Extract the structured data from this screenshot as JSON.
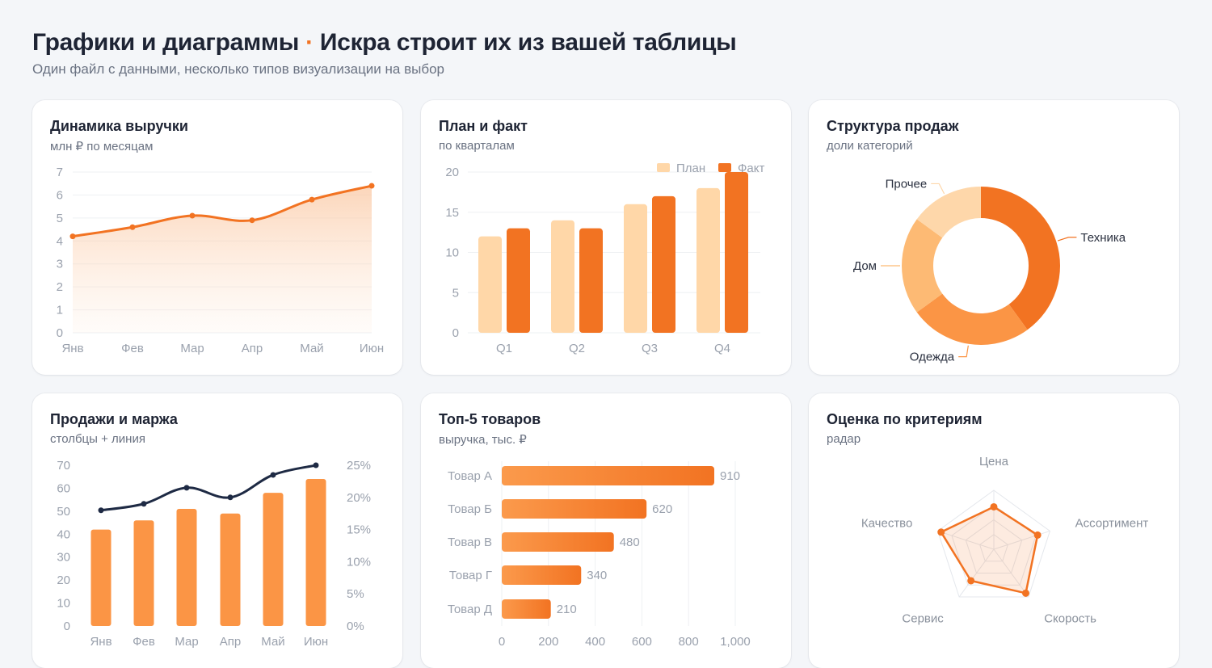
{
  "page": {
    "title_part1": "Графики и диаграммы",
    "separator": "·",
    "title_part2": "Искра строит их из вашей таблицы",
    "subtitle": "Один файл с данными, несколько типов визуализации на выбор"
  },
  "colors": {
    "accent": "#f27322",
    "accent_light": "#ffd7a8",
    "mid": "#fb9545",
    "dark_line": "#1e2a44"
  },
  "cards": {
    "revenue": {
      "title": "Динамика выручки",
      "subtitle": "млн ₽ по месяцам"
    },
    "planfact": {
      "title": "План и факт",
      "subtitle": "по кварталам"
    },
    "structure": {
      "title": "Структура продаж",
      "subtitle": "доли категорий"
    },
    "salesmargin": {
      "title": "Продажи и маржа",
      "subtitle": "столбцы + линия"
    },
    "top5": {
      "title": "Топ-5 товаров",
      "subtitle": "выручка, тыс. ₽"
    },
    "radar": {
      "title": "Оценка по критериям",
      "subtitle": "радар"
    }
  },
  "chart_data": [
    {
      "type": "area",
      "title": "Динамика выручки",
      "subtitle": "млн ₽ по месяцам",
      "categories": [
        "Янв",
        "Фев",
        "Мар",
        "Апр",
        "Май",
        "Июн"
      ],
      "values": [
        4.2,
        4.6,
        5.1,
        4.9,
        5.8,
        6.4
      ],
      "ylim": [
        0,
        7
      ],
      "yticks": [
        "0",
        "1",
        "2",
        "3",
        "4",
        "5",
        "6",
        "7"
      ]
    },
    {
      "type": "bar",
      "title": "План и факт",
      "subtitle": "по кварталам",
      "categories": [
        "Q1",
        "Q2",
        "Q3",
        "Q4"
      ],
      "series": [
        {
          "name": "План",
          "values": [
            12,
            14,
            16,
            18
          ]
        },
        {
          "name": "Факт",
          "values": [
            13,
            13,
            17,
            20
          ]
        }
      ],
      "ylim": [
        0,
        20
      ],
      "yticks": [
        "0",
        "5",
        "10",
        "15",
        "20"
      ],
      "legend": "top-right"
    },
    {
      "type": "pie",
      "title": "Структура продаж",
      "subtitle": "доли категорий",
      "labels": [
        "Техника",
        "Одежда",
        "Дом",
        "Прочее"
      ],
      "values": [
        40,
        25,
        20,
        15
      ]
    },
    {
      "type": "bar",
      "title": "Продажи и маржа",
      "subtitle": "столбцы + линия",
      "categories": [
        "Янв",
        "Фев",
        "Мар",
        "Апр",
        "Май",
        "Июн"
      ],
      "bars": [
        42,
        46,
        51,
        49,
        58,
        64
      ],
      "line": [
        18,
        19,
        21.5,
        20,
        23.5,
        25
      ],
      "ylim": [
        0,
        70
      ],
      "y2lim": [
        0,
        25
      ],
      "yticks": [
        "0",
        "10",
        "20",
        "30",
        "40",
        "50",
        "60",
        "70"
      ],
      "y2ticks": [
        "0%",
        "5%",
        "10%",
        "15%",
        "20%",
        "25%"
      ]
    },
    {
      "type": "bar",
      "orientation": "horizontal",
      "title": "Топ-5 товаров",
      "subtitle": "выручка, тыс. ₽",
      "categories": [
        "Товар А",
        "Товар Б",
        "Товар В",
        "Товар Г",
        "Товар Д"
      ],
      "values": [
        910,
        620,
        480,
        340,
        210
      ],
      "xlim": [
        0,
        1000
      ],
      "xticks": [
        "0",
        "200",
        "400",
        "600",
        "800",
        "1,000"
      ]
    },
    {
      "type": "radar",
      "title": "Оценка по критериям",
      "subtitle": "радар",
      "axes": [
        "Цена",
        "Ассортимент",
        "Скорость",
        "Сервис",
        "Качество"
      ],
      "values": [
        0.72,
        0.78,
        0.92,
        0.66,
        0.94
      ],
      "max": 1
    }
  ]
}
